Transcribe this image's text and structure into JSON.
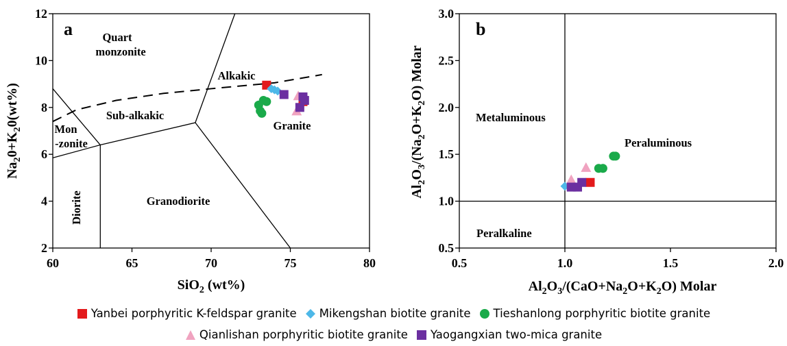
{
  "chart_data": [
    {
      "panel_label": "a",
      "type": "scatter",
      "xlabel": "SiO2 (wt%)",
      "ylabel": "Na20+K20(wt%)",
      "xlim": [
        60,
        80
      ],
      "ylim": [
        2,
        12
      ],
      "xticks": [
        "60",
        "65",
        "70",
        "75",
        "80"
      ],
      "yticks": [
        "2",
        "4",
        "6",
        "8",
        "10",
        "12"
      ],
      "field_labels": {
        "quart": "Quart",
        "monzonite": "monzonite",
        "alkakic": "Alkakic",
        "subalkakic": "Sub-alkakic",
        "mon": "Mon",
        "zonite": "-zonite",
        "granite": "Granite",
        "diorite": "Diorite",
        "granodiorite": "Granodiorite"
      },
      "boundaries": [
        [
          [
            60,
            5.85
          ],
          [
            63,
            6.4
          ],
          [
            69,
            7.35
          ],
          [
            71.5,
            12
          ]
        ],
        [
          [
            69,
            7.35
          ],
          [
            75,
            2
          ]
        ],
        [
          [
            63,
            6.4
          ],
          [
            63,
            2
          ]
        ],
        [
          [
            60,
            8.8
          ],
          [
            63,
            6.4
          ]
        ]
      ],
      "alkaline_divide": [
        [
          60,
          7.4
        ],
        [
          61.5,
          7.9
        ],
        [
          64,
          8.3
        ],
        [
          67,
          8.6
        ],
        [
          70,
          8.8
        ],
        [
          74,
          9.05
        ],
        [
          77,
          9.4
        ]
      ],
      "series": [
        {
          "name": "Yanbei porphyritic K-feldspar granite",
          "color": "#e31a1c",
          "marker": "square",
          "points": [
            [
              73.5,
              8.95
            ],
            [
              75.8,
              8.25
            ]
          ]
        },
        {
          "name": "Mikengshan biotite granite",
          "color": "#4db8e8",
          "marker": "diamond",
          "points": [
            [
              73.8,
              8.8
            ],
            [
              74.0,
              8.75
            ],
            [
              74.2,
              8.7
            ]
          ]
        },
        {
          "name": "Tieshanlong porphyritic biotite granite",
          "color": "#1aaa4a",
          "marker": "circle",
          "points": [
            [
              73.0,
              8.1
            ],
            [
              73.3,
              8.3
            ],
            [
              73.1,
              7.85
            ],
            [
              73.2,
              7.75
            ],
            [
              73.5,
              8.25
            ]
          ]
        },
        {
          "name": "Qianlishan porphyritic biotite granite",
          "color": "#f0a3c0",
          "marker": "triangle",
          "points": [
            [
              75.5,
              8.5
            ],
            [
              75.4,
              7.85
            ]
          ]
        },
        {
          "name": "Yaogangxian two-mica granite",
          "color": "#6b2fa0",
          "marker": "square",
          "points": [
            [
              74.6,
              8.55
            ],
            [
              75.8,
              8.45
            ],
            [
              75.6,
              8.0
            ],
            [
              75.9,
              8.3
            ]
          ]
        }
      ]
    },
    {
      "panel_label": "b",
      "type": "scatter",
      "xlabel": "Al2O3/(CaO+Na2O+K2O) Molar",
      "ylabel": "Al2O3/(Na2O+K2O) Molar",
      "xlim": [
        0.5,
        2.0
      ],
      "ylim": [
        0.5,
        3.0
      ],
      "xticks": [
        "0.5",
        "1.0",
        "1.5",
        "2.0"
      ],
      "yticks": [
        "0.5",
        "1.0",
        "1.5",
        "2.0",
        "2.5",
        "3.0"
      ],
      "field_labels": {
        "metaluminous": "Metaluminous",
        "peraluminous": "Peraluminous",
        "peralkaline": "Peralkaline"
      },
      "dividers": {
        "x": 1.0,
        "y": 1.0
      },
      "series": [
        {
          "name": "Yanbei porphyritic K-feldspar granite",
          "color": "#e31a1c",
          "marker": "square",
          "points": [
            [
              1.12,
              1.2
            ]
          ]
        },
        {
          "name": "Mikengshan biotite granite",
          "color": "#4db8e8",
          "marker": "diamond",
          "points": [
            [
              1.0,
              1.16
            ]
          ]
        },
        {
          "name": "Tieshanlong porphyritic biotite granite",
          "color": "#1aaa4a",
          "marker": "circle",
          "points": [
            [
              1.16,
              1.35
            ],
            [
              1.18,
              1.35
            ],
            [
              1.23,
              1.48
            ],
            [
              1.24,
              1.48
            ]
          ]
        },
        {
          "name": "Qianlishan porphyritic biotite granite",
          "color": "#f0a3c0",
          "marker": "triangle",
          "points": [
            [
              1.03,
              1.23
            ],
            [
              1.1,
              1.36
            ]
          ]
        },
        {
          "name": "Yaogangxian two-mica granite",
          "color": "#6b2fa0",
          "marker": "square",
          "points": [
            [
              1.03,
              1.15
            ],
            [
              1.06,
              1.15
            ],
            [
              1.08,
              1.2
            ]
          ]
        }
      ]
    }
  ],
  "legend": {
    "row1": [
      {
        "label": "Yanbei porphyritic K-feldspar granite",
        "color": "#e31a1c",
        "marker": "square"
      },
      {
        "label": "Mikengshan biotite granite",
        "color": "#4db8e8",
        "marker": "diamond"
      },
      {
        "label": "Tieshanlong porphyritic biotite granite",
        "color": "#1aaa4a",
        "marker": "circle"
      }
    ],
    "row2": [
      {
        "label": "Qianlishan porphyritic biotite granite",
        "color": "#f0a3c0",
        "marker": "triangle"
      },
      {
        "label": "Yaogangxian two-mica granite",
        "color": "#6b2fa0",
        "marker": "square"
      }
    ]
  }
}
